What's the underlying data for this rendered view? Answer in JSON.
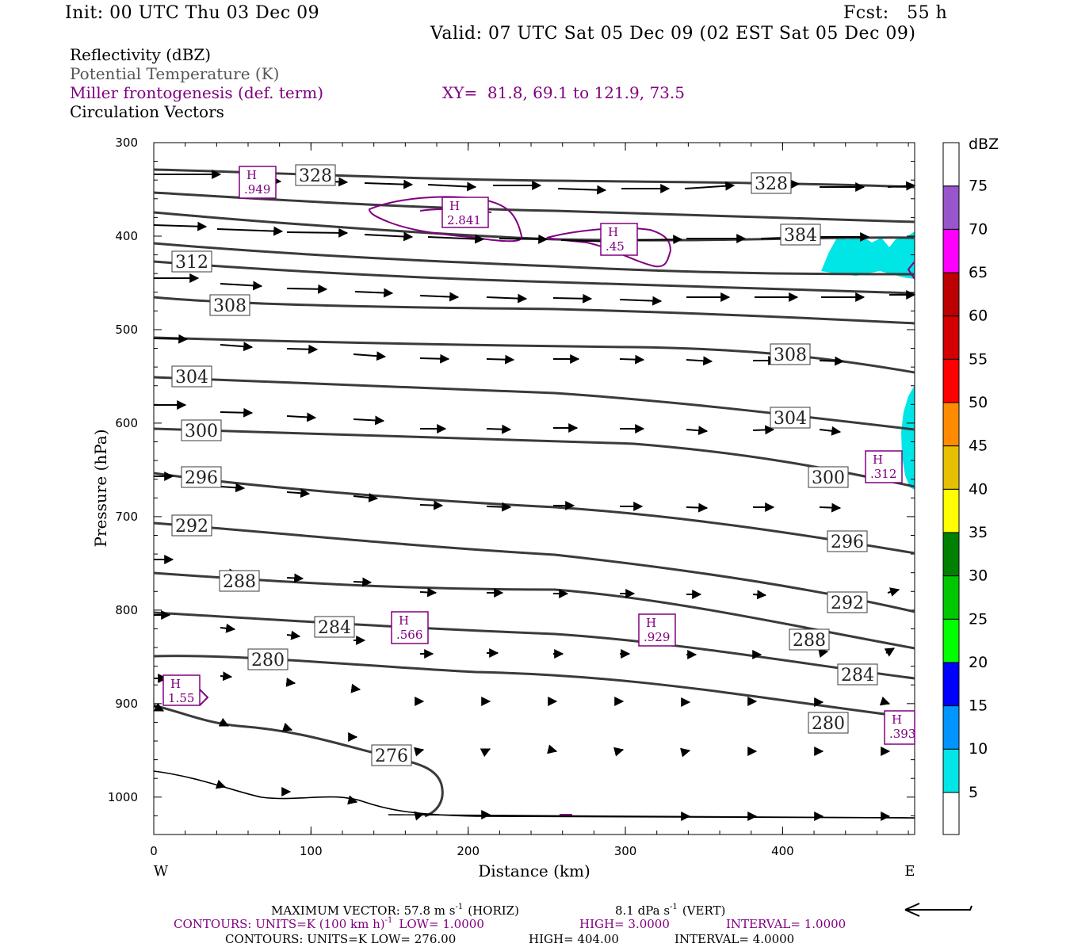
{
  "header": {
    "init": "Init: 00 UTC Thu 03 Dec 09",
    "fcst": "Fcst:   55 h",
    "valid": "Valid: 07 UTC Sat 05 Dec 09 (02 EST Sat 05 Dec 09)"
  },
  "legend": {
    "line1": "Reflectivity (dBZ)",
    "line2": "Potential Temperature (K)",
    "line3": "Miller frontogenesis (def. term)",
    "line4": "Circulation Vectors",
    "xy": "XY=  81.8, 69.1 to 121.9, 73.5"
  },
  "colors": {
    "theta": "#3a3a3a",
    "fronto": "#800080",
    "refl5": "#00e5e5",
    "potential_temp_label": "#555555"
  },
  "footer": {
    "max_vector": "MAXIMUM VECTOR:  57.8 m s",
    "max_vector_unit": "(HORIZ)",
    "vert": "8.1 dPa s",
    "vert_unit": "(VERT)",
    "contours1_a": "CONTOURS:  UNITS=K (100 km h)",
    "contours1_b": "LOW=   1.0000",
    "contours1_c": "HIGH=   3.0000",
    "contours1_d": "INTERVAL=    1.0000",
    "contours2_a": "CONTOURS:  UNITS=K  LOW=   276.00",
    "contours2_b": "HIGH=   404.00",
    "contours2_c": "INTERVAL=    4.0000",
    "neg1": "-1"
  },
  "chart_data": {
    "type": "cross-section",
    "xlabel": "Distance (km)",
    "ylabel": "Pressure (hPa)",
    "xlim": [
      0,
      484
    ],
    "ylim": [
      1040,
      300
    ],
    "x_ticks": [
      "0",
      "100",
      "200",
      "300",
      "400"
    ],
    "y_ticks": [
      "300",
      "400",
      "500",
      "600",
      "700",
      "800",
      "900",
      "1000"
    ],
    "x_ends": [
      "W",
      "E"
    ],
    "colorbar": {
      "unit": "dBZ",
      "levels": [
        "5",
        "10",
        "15",
        "20",
        "25",
        "30",
        "35",
        "40",
        "45",
        "50",
        "55",
        "60",
        "65",
        "70",
        "75"
      ],
      "colors": [
        "#00e5e5",
        "#0095ff",
        "#0000ff",
        "#00ff00",
        "#00c800",
        "#008000",
        "#ffff00",
        "#e6c000",
        "#ff8c00",
        "#ff0000",
        "#d40000",
        "#bd0000",
        "#ff00ff",
        "#9955cc",
        "#ffffff"
      ]
    },
    "theta_labels": [
      "328",
      "328",
      "384",
      "312",
      "308",
      "308",
      "304",
      "304",
      "300",
      "300",
      "296",
      "296",
      "292",
      "292",
      "288",
      "288",
      "284",
      "284",
      "280",
      "280",
      "276"
    ],
    "fronto_highs": [
      "H",
      ".949",
      "H",
      "2.841",
      "H",
      ".45",
      "H",
      ".312",
      "H",
      ".566",
      "H",
      ".929",
      "H",
      "1.55",
      "H",
      ".393"
    ],
    "series": [
      {
        "name": "theta",
        "contours_K": [
          276,
          280,
          284,
          288,
          292,
          296,
          300,
          304,
          308,
          312,
          328,
          384
        ]
      }
    ]
  }
}
